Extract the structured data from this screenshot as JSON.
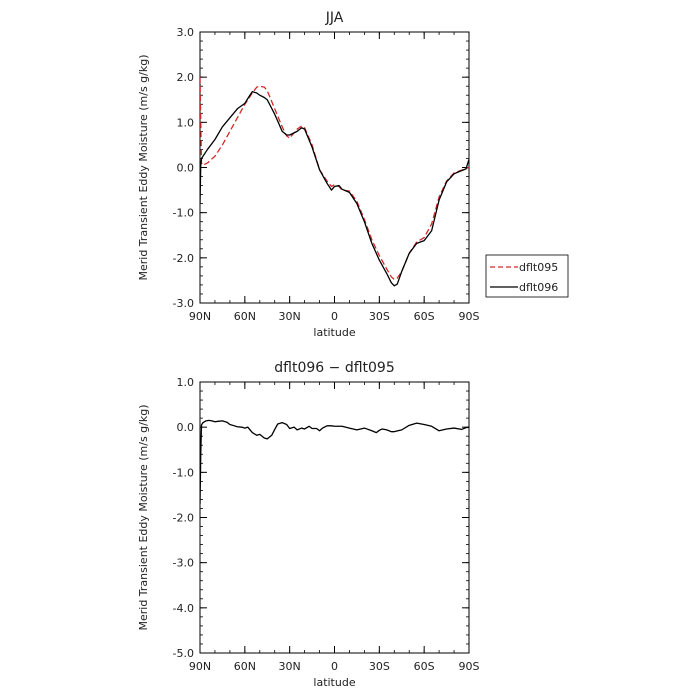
{
  "chart_data": [
    {
      "type": "line",
      "title": "JJA",
      "xlabel": "latitude",
      "ylabel": "Merid Transient Eddy Moisture  (m/s g/kg)",
      "xlim": [
        90,
        -90
      ],
      "ylim": [
        -3.0,
        3.0
      ],
      "x_ticks": [
        90,
        60,
        30,
        0,
        -30,
        -60,
        -90
      ],
      "x_tick_labels": [
        "90N",
        "60N",
        "30N",
        "0",
        "30S",
        "60S",
        "90S"
      ],
      "y_ticks": [
        -3.0,
        -2.0,
        -1.0,
        0.0,
        1.0,
        2.0,
        3.0
      ],
      "y_tick_labels": [
        "-3.0",
        "-2.0",
        "-1.0",
        "0.0",
        "1.0",
        "2.0",
        "3.0"
      ],
      "grid": false,
      "legend": {
        "position": "right-outside",
        "entries": [
          {
            "label": "dflt095",
            "color": "#d62728",
            "dash": "dashed"
          },
          {
            "label": "dflt096",
            "color": "#000000",
            "dash": "solid"
          }
        ]
      },
      "series": [
        {
          "name": "dflt095",
          "color": "#d62728",
          "dash": "dashed",
          "x": [
            90,
            89.5,
            89,
            88,
            85,
            80,
            75,
            70,
            65,
            60,
            55,
            52,
            50,
            47,
            45,
            40,
            35,
            32,
            30,
            25,
            22,
            20,
            15,
            10,
            5,
            2,
            0,
            -3,
            -5,
            -10,
            -15,
            -20,
            -25,
            -30,
            -35,
            -38,
            -40,
            -42,
            -45,
            -50,
            -55,
            -60,
            -65,
            -70,
            -75,
            -80,
            -85,
            -88,
            -90
          ],
          "y": [
            2.0,
            1.0,
            0.1,
            0.05,
            0.1,
            0.25,
            0.5,
            0.8,
            1.1,
            1.4,
            1.65,
            1.78,
            1.8,
            1.78,
            1.7,
            1.3,
            0.9,
            0.7,
            0.65,
            0.85,
            0.92,
            0.88,
            0.5,
            -0.05,
            -0.3,
            -0.42,
            -0.38,
            -0.42,
            -0.5,
            -0.52,
            -0.75,
            -1.15,
            -1.6,
            -1.95,
            -2.25,
            -2.42,
            -2.48,
            -2.45,
            -2.3,
            -1.9,
            -1.65,
            -1.55,
            -1.25,
            -0.65,
            -0.3,
            -0.12,
            -0.06,
            -0.02,
            0.0
          ]
        },
        {
          "name": "dflt096",
          "color": "#000000",
          "dash": "solid",
          "x": [
            90,
            89.5,
            89,
            88,
            85,
            80,
            75,
            70,
            65,
            60,
            57,
            55,
            52,
            50,
            47,
            45,
            40,
            35,
            32,
            30,
            25,
            22,
            20,
            15,
            10,
            5,
            2,
            0,
            -3,
            -5,
            -10,
            -15,
            -20,
            -25,
            -30,
            -35,
            -38,
            -40,
            -42,
            -45,
            -50,
            -55,
            -60,
            -65,
            -70,
            -75,
            -80,
            -85,
            -88,
            -90
          ],
          "y": [
            -0.8,
            0.05,
            0.2,
            0.25,
            0.4,
            0.62,
            0.9,
            1.1,
            1.3,
            1.42,
            1.58,
            1.68,
            1.65,
            1.6,
            1.55,
            1.5,
            1.18,
            0.8,
            0.72,
            0.72,
            0.8,
            0.88,
            0.85,
            0.45,
            -0.05,
            -0.35,
            -0.5,
            -0.42,
            -0.4,
            -0.48,
            -0.55,
            -0.8,
            -1.2,
            -1.68,
            -2.05,
            -2.35,
            -2.55,
            -2.62,
            -2.58,
            -2.3,
            -1.9,
            -1.68,
            -1.62,
            -1.4,
            -0.72,
            -0.32,
            -0.14,
            -0.07,
            -0.03,
            0.18
          ]
        }
      ]
    },
    {
      "type": "line",
      "title": "dflt096 − dflt095",
      "xlabel": "latitude",
      "ylabel": "Merid Transient Eddy Moisture  (m/s g/kg)",
      "xlim": [
        90,
        -90
      ],
      "ylim": [
        -5.0,
        1.0
      ],
      "x_ticks": [
        90,
        60,
        30,
        0,
        -30,
        -60,
        -90
      ],
      "x_tick_labels": [
        "90N",
        "60N",
        "30N",
        "0",
        "30S",
        "60S",
        "90S"
      ],
      "y_ticks": [
        -5.0,
        -4.0,
        -3.0,
        -2.0,
        -1.0,
        0.0,
        1.0
      ],
      "y_tick_labels": [
        "-5.0",
        "-4.0",
        "-3.0",
        "-2.0",
        "-1.0",
        "0.0",
        "1.0"
      ],
      "grid": false,
      "series": [
        {
          "name": "dflt096 − dflt095",
          "color": "#000000",
          "dash": "solid",
          "x": [
            90,
            89.5,
            89,
            88,
            86,
            84,
            82,
            80,
            78,
            75,
            72,
            70,
            67,
            65,
            62,
            60,
            58,
            55,
            52,
            50,
            47,
            45,
            42,
            40,
            38,
            35,
            32,
            30,
            27,
            25,
            22,
            20,
            17,
            15,
            12,
            10,
            8,
            5,
            2,
            0,
            -5,
            -10,
            -15,
            -20,
            -25,
            -28,
            -30,
            -32,
            -35,
            -38,
            -40,
            -45,
            -50,
            -55,
            -60,
            -65,
            -70,
            -75,
            -80,
            -85,
            -88,
            -90
          ],
          "y": [
            -1.7,
            -0.6,
            0.05,
            0.1,
            0.14,
            0.15,
            0.14,
            0.12,
            0.13,
            0.14,
            0.11,
            0.06,
            0.03,
            0.01,
            0.0,
            -0.02,
            0.0,
            -0.12,
            -0.18,
            -0.16,
            -0.24,
            -0.26,
            -0.18,
            -0.05,
            0.07,
            0.1,
            0.06,
            -0.03,
            0.0,
            -0.06,
            -0.02,
            -0.04,
            0.02,
            -0.03,
            -0.03,
            -0.08,
            -0.02,
            0.03,
            0.03,
            0.02,
            0.02,
            -0.02,
            -0.06,
            -0.02,
            -0.08,
            -0.12,
            -0.07,
            -0.04,
            -0.06,
            -0.1,
            -0.1,
            -0.06,
            0.04,
            0.09,
            0.06,
            0.02,
            -0.08,
            -0.04,
            -0.02,
            -0.05,
            -0.01,
            0.0
          ]
        }
      ]
    }
  ]
}
